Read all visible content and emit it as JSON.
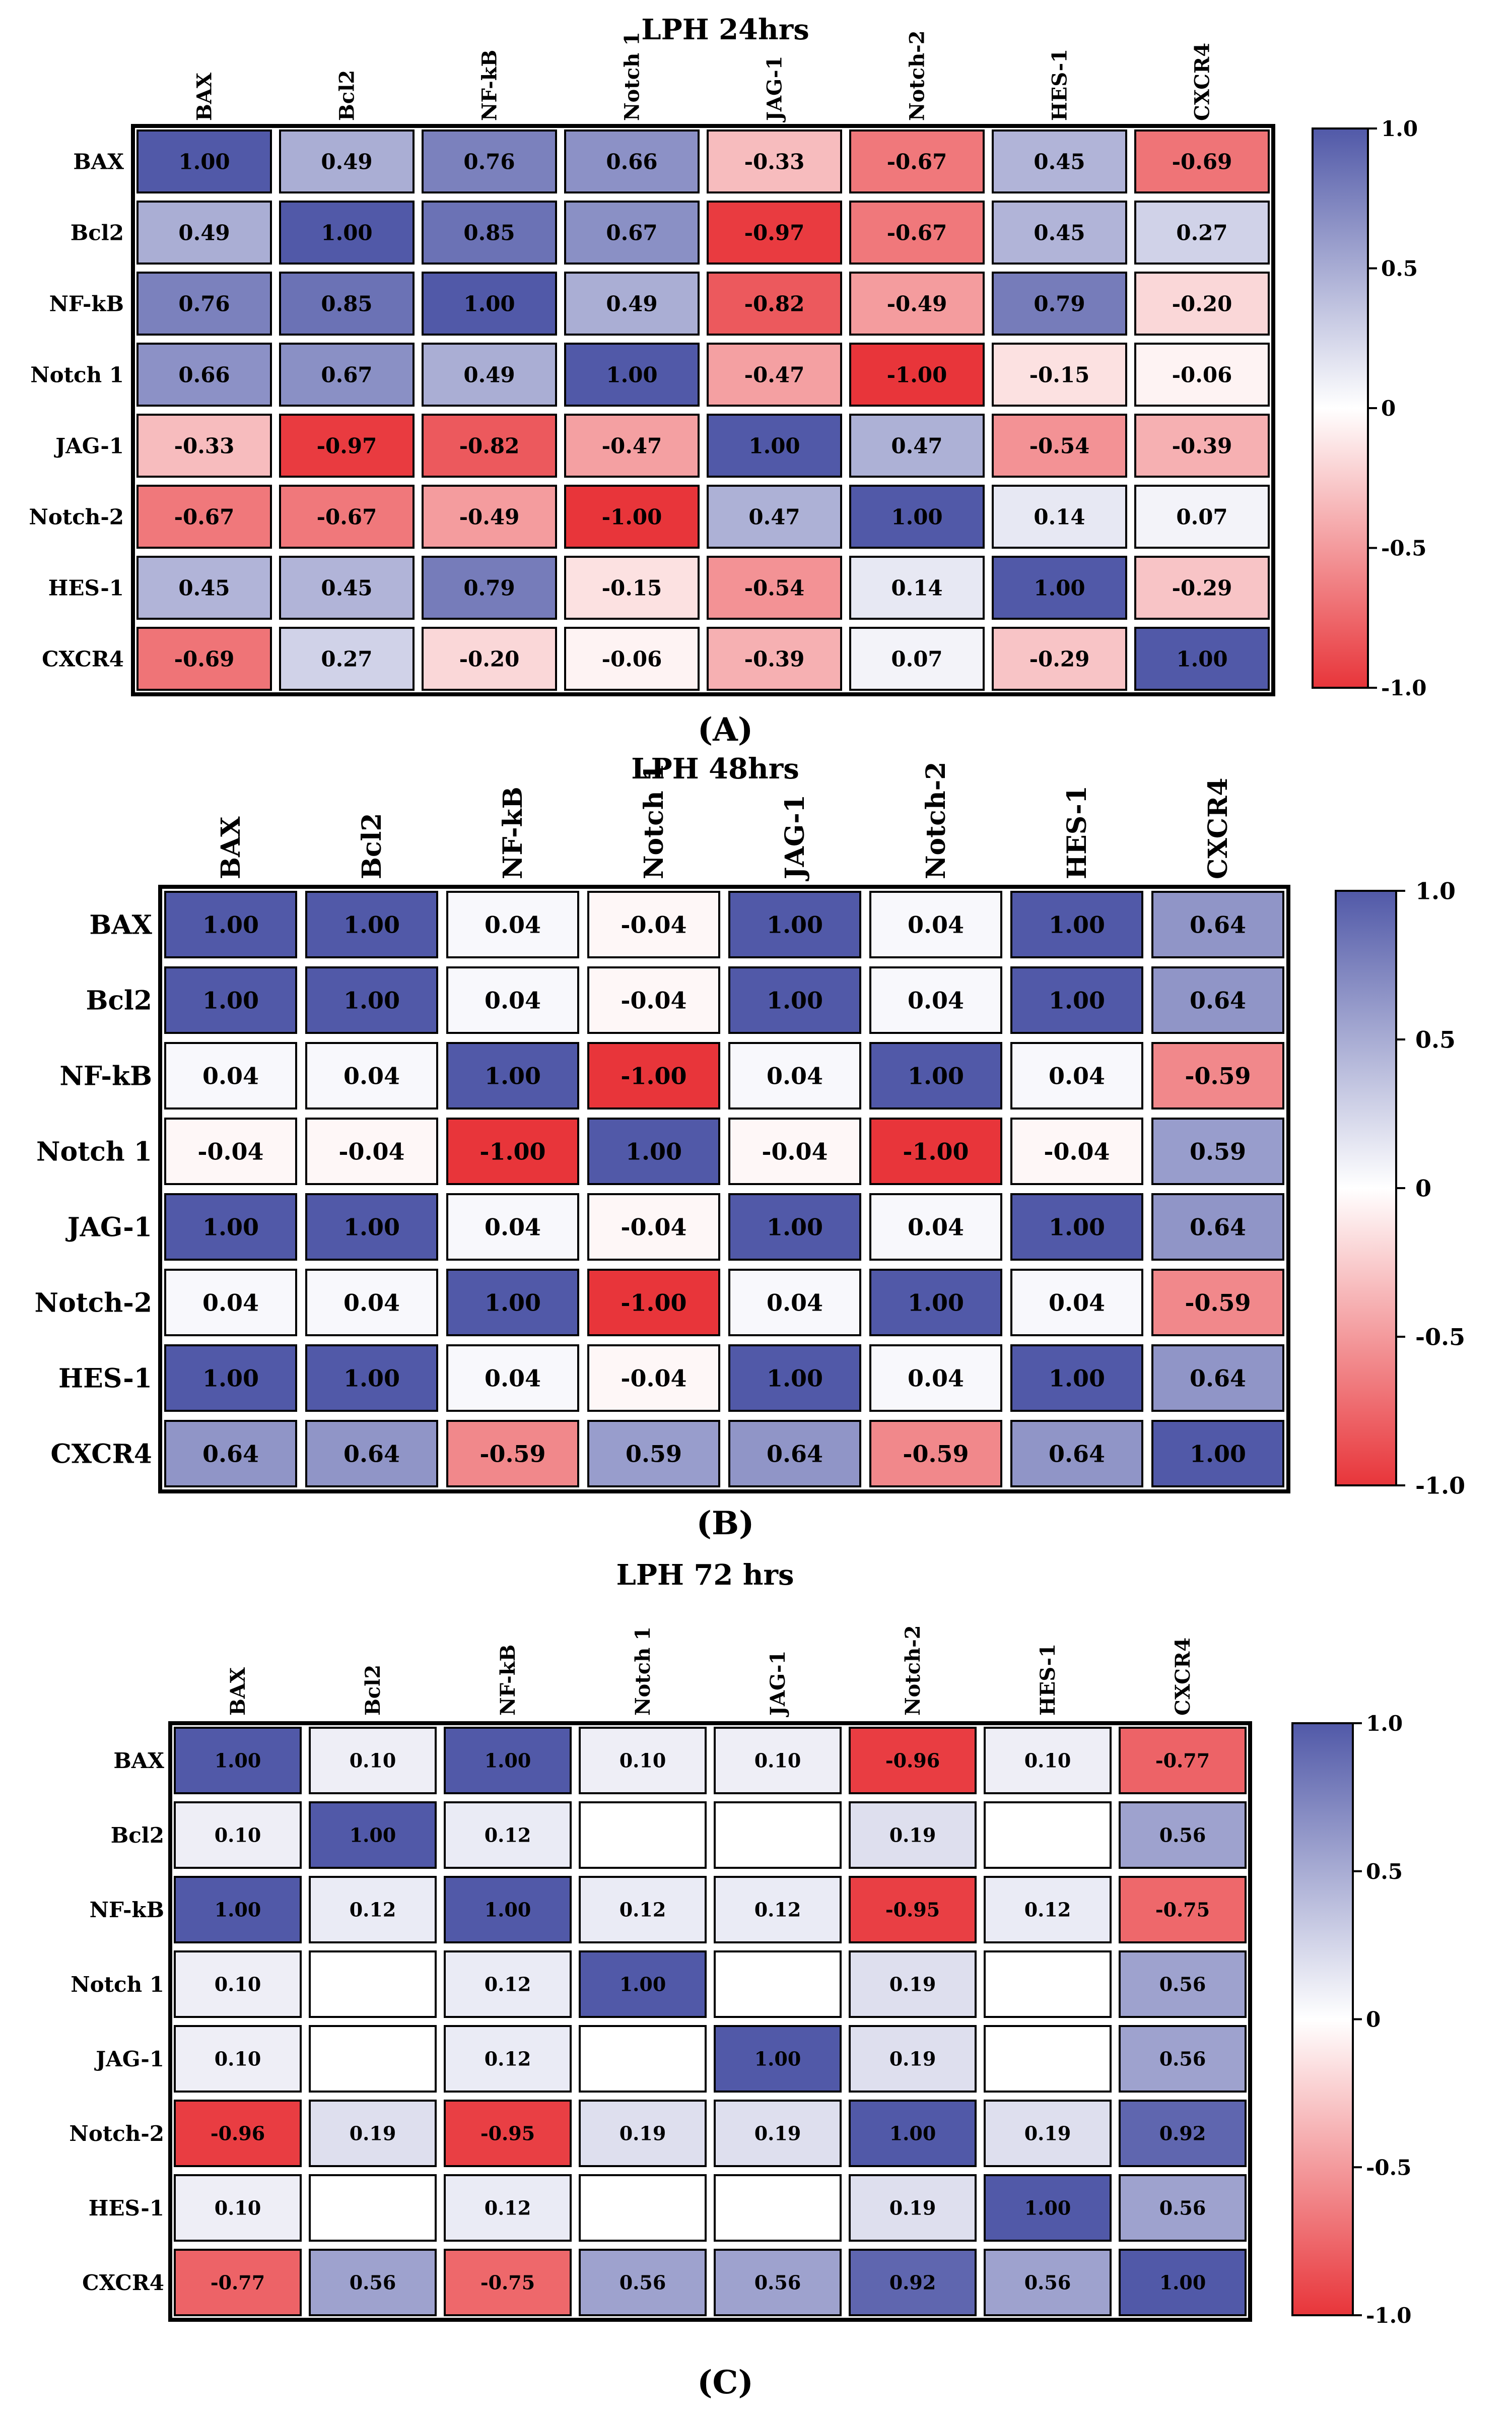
{
  "chart_data": [
    {
      "type": "heatmap",
      "title": "LPH 24hrs",
      "panel_label": "(A)",
      "categories": [
        "BAX",
        "Bcl2",
        "NF-kB",
        "Notch 1",
        "JAG-1",
        "Notch-2",
        "HES-1",
        "CXCR4"
      ],
      "values": [
        [
          1.0,
          0.49,
          0.76,
          0.66,
          -0.33,
          -0.67,
          0.45,
          -0.69
        ],
        [
          0.49,
          1.0,
          0.85,
          0.67,
          -0.97,
          -0.67,
          0.45,
          0.27
        ],
        [
          0.76,
          0.85,
          1.0,
          0.49,
          -0.82,
          -0.49,
          0.79,
          -0.2
        ],
        [
          0.66,
          0.67,
          0.49,
          1.0,
          -0.47,
          -1.0,
          -0.15,
          -0.06
        ],
        [
          -0.33,
          -0.97,
          -0.82,
          -0.47,
          1.0,
          0.47,
          -0.54,
          -0.39
        ],
        [
          -0.67,
          -0.67,
          -0.49,
          -1.0,
          0.47,
          1.0,
          0.14,
          0.07
        ],
        [
          0.45,
          0.45,
          0.79,
          -0.15,
          -0.54,
          0.14,
          1.0,
          -0.29
        ],
        [
          -0.69,
          0.27,
          -0.2,
          -0.06,
          -0.39,
          0.07,
          -0.29,
          1.0
        ]
      ],
      "colorbar_ticks": [
        "1.0",
        "0.5",
        "0",
        "-0.5",
        "-1.0"
      ],
      "range": [
        -1,
        1
      ]
    },
    {
      "type": "heatmap",
      "title": "LPH 48hrs",
      "panel_label": "(B)",
      "categories": [
        "BAX",
        "Bcl2",
        "NF-kB",
        "Notch 1",
        "JAG-1",
        "Notch-2",
        "HES-1",
        "CXCR4"
      ],
      "values": [
        [
          1.0,
          1.0,
          0.04,
          -0.04,
          1.0,
          0.04,
          1.0,
          0.64
        ],
        [
          1.0,
          1.0,
          0.04,
          -0.04,
          1.0,
          0.04,
          1.0,
          0.64
        ],
        [
          0.04,
          0.04,
          1.0,
          -1.0,
          0.04,
          1.0,
          0.04,
          -0.59
        ],
        [
          -0.04,
          -0.04,
          -1.0,
          1.0,
          -0.04,
          -1.0,
          -0.04,
          0.59
        ],
        [
          1.0,
          1.0,
          0.04,
          -0.04,
          1.0,
          0.04,
          1.0,
          0.64
        ],
        [
          0.04,
          0.04,
          1.0,
          -1.0,
          0.04,
          1.0,
          0.04,
          -0.59
        ],
        [
          1.0,
          1.0,
          0.04,
          -0.04,
          1.0,
          0.04,
          1.0,
          0.64
        ],
        [
          0.64,
          0.64,
          -0.59,
          0.59,
          0.64,
          -0.59,
          0.64,
          1.0
        ]
      ],
      "colorbar_ticks": [
        "1.0",
        "0.5",
        "0",
        "-0.5",
        "-1.0"
      ],
      "range": [
        -1,
        1
      ]
    },
    {
      "type": "heatmap",
      "title": "LPH 72 hrs",
      "panel_label": "(C)",
      "categories": [
        "BAX",
        "Bcl2",
        "NF-kB",
        "Notch 1",
        "JAG-1",
        "Notch-2",
        "HES-1",
        "CXCR4"
      ],
      "values": [
        [
          1.0,
          0.1,
          1.0,
          0.1,
          0.1,
          -0.96,
          0.1,
          -0.77
        ],
        [
          0.1,
          1.0,
          0.12,
          null,
          null,
          0.19,
          null,
          0.56
        ],
        [
          1.0,
          0.12,
          1.0,
          0.12,
          0.12,
          -0.95,
          0.12,
          -0.75
        ],
        [
          0.1,
          null,
          0.12,
          1.0,
          null,
          0.19,
          null,
          0.56
        ],
        [
          0.1,
          null,
          0.12,
          null,
          1.0,
          0.19,
          null,
          0.56
        ],
        [
          -0.96,
          0.19,
          -0.95,
          0.19,
          0.19,
          1.0,
          0.19,
          0.92
        ],
        [
          0.1,
          null,
          0.12,
          null,
          null,
          0.19,
          1.0,
          0.56
        ],
        [
          -0.77,
          0.56,
          -0.75,
          0.56,
          0.56,
          0.92,
          0.56,
          1.0
        ]
      ],
      "colorbar_ticks": [
        "1.0",
        "0.5",
        "0",
        "-0.5",
        "-1.0"
      ],
      "range": [
        -1,
        1
      ]
    }
  ],
  "colors": {
    "positive": "#5159A8",
    "neutral": "#FFFFFF",
    "negative": "#E8353A"
  }
}
